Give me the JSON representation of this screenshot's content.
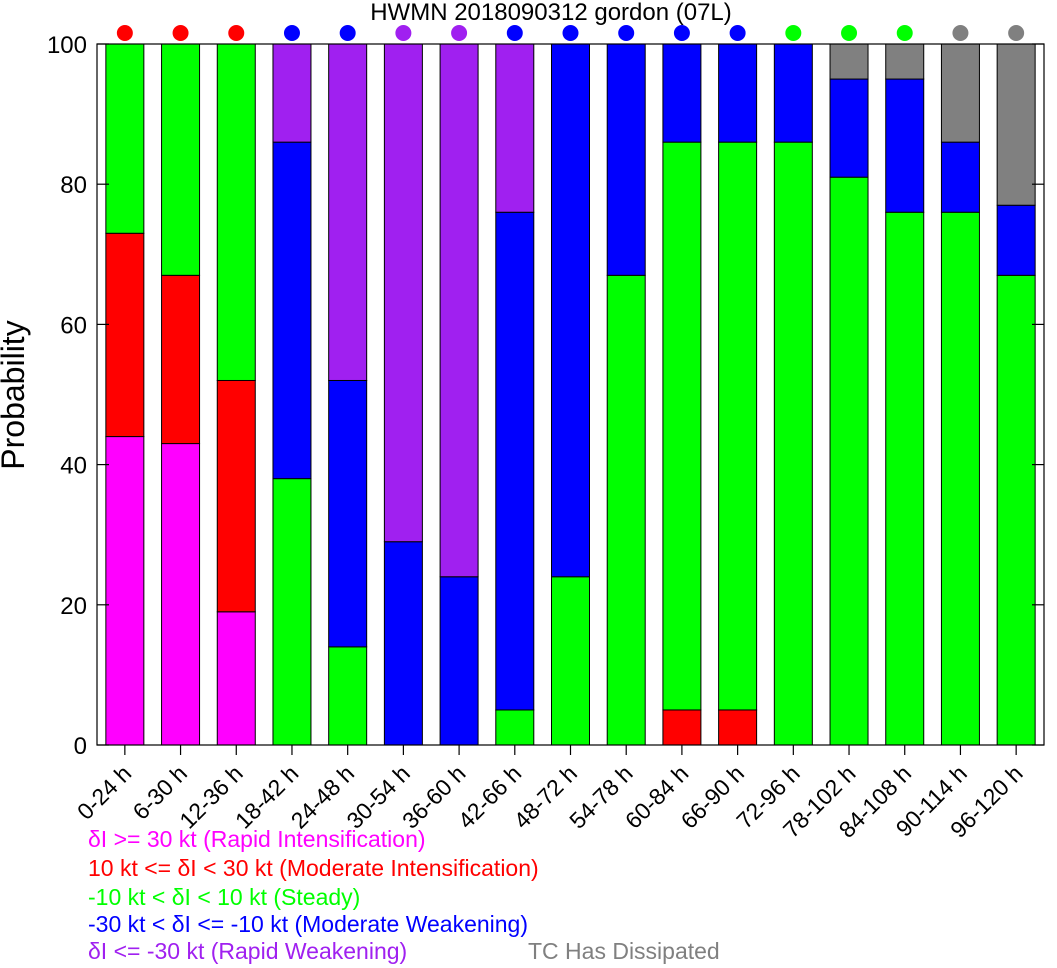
{
  "chart_data": {
    "type": "bar",
    "stacked": true,
    "title": "HWMN 2018090312 gordon (07L)",
    "ylabel": "Probability",
    "xlabel": "",
    "ylim": [
      0,
      100
    ],
    "yticks": [
      0,
      20,
      40,
      60,
      80,
      100
    ],
    "grid": false,
    "categories": [
      "0-24 h",
      "6-30 h",
      "12-36 h",
      "18-42 h",
      "24-48 h",
      "30-54 h",
      "36-60 h",
      "42-66 h",
      "48-72 h",
      "54-78 h",
      "60-84 h",
      "66-90 h",
      "72-96 h",
      "78-102 h",
      "84-108 h",
      "90-114 h",
      "96-120 h"
    ],
    "series": [
      {
        "key": "ri",
        "color": "#ff00ff",
        "values": [
          44,
          43,
          19,
          0,
          0,
          0,
          0,
          0,
          0,
          0,
          0,
          0,
          0,
          0,
          0,
          0,
          0
        ]
      },
      {
        "key": "mi",
        "color": "#ff0000",
        "values": [
          29,
          24,
          33,
          0,
          0,
          0,
          0,
          0,
          0,
          0,
          5,
          5,
          0,
          0,
          0,
          0,
          0
        ]
      },
      {
        "key": "st",
        "color": "#00ff00",
        "values": [
          27,
          33,
          48,
          38,
          14,
          0,
          0,
          5,
          24,
          67,
          81,
          81,
          86,
          81,
          76,
          76,
          67
        ]
      },
      {
        "key": "mw",
        "color": "#0000ff",
        "values": [
          0,
          0,
          0,
          48,
          38,
          29,
          24,
          71,
          76,
          33,
          14,
          14,
          14,
          14,
          19,
          10,
          10
        ]
      },
      {
        "key": "rw",
        "color": "#a020f0",
        "values": [
          0,
          0,
          0,
          14,
          48,
          71,
          76,
          24,
          0,
          0,
          0,
          0,
          0,
          0,
          0,
          0,
          0
        ]
      },
      {
        "key": "dis",
        "color": "#808080",
        "values": [
          0,
          0,
          0,
          0,
          0,
          0,
          0,
          0,
          0,
          0,
          0,
          0,
          0,
          5,
          5,
          14,
          23
        ]
      }
    ],
    "top_markers": [
      "#ff0000",
      "#ff0000",
      "#ff0000",
      "#0000ff",
      "#0000ff",
      "#a020f0",
      "#a020f0",
      "#0000ff",
      "#0000ff",
      "#0000ff",
      "#0000ff",
      "#0000ff",
      "#00ff00",
      "#00ff00",
      "#00ff00",
      "#808080",
      "#808080"
    ],
    "legend": [
      {
        "text": "δI >= 30 kt (Rapid Intensification)",
        "color": "#ff00ff"
      },
      {
        "text": "10 kt <= δI < 30 kt (Moderate Intensification)",
        "color": "#ff0000"
      },
      {
        "text": "-10 kt < δI < 10 kt (Steady)",
        "color": "#00ff00"
      },
      {
        "text": "-30 kt < δI <= -10 kt (Moderate Weakening)",
        "color": "#0000ff"
      },
      {
        "text": "δI <= -30 kt (Rapid Weakening)",
        "color": "#a020f0"
      },
      {
        "text": "TC Has Dissipated",
        "color": "#808080"
      }
    ],
    "legend_placement": "bottom-left"
  }
}
